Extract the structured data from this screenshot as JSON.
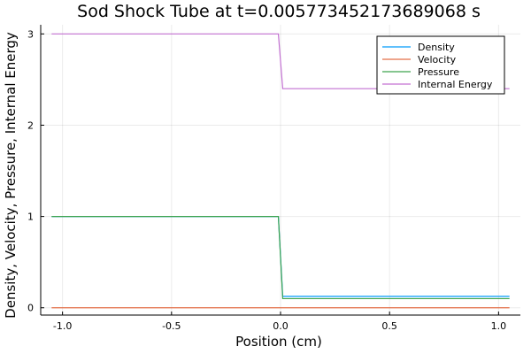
{
  "chart_data": {
    "type": "line",
    "title": "Sod Shock Tube at t=0.005773452173689068 s",
    "xlabel": "Position (cm)",
    "ylabel": "Density, Velocity, Pressure, Internal Energy",
    "xlim": [
      -1.1,
      1.1
    ],
    "ylim": [
      -0.08,
      3.1
    ],
    "xticks": [
      -1.0,
      -0.5,
      0.0,
      0.5,
      1.0
    ],
    "xtick_labels": [
      "-1.0",
      "-0.5",
      "0.0",
      "0.5",
      "1.0"
    ],
    "yticks": [
      0,
      1,
      2,
      3
    ],
    "ytick_labels": [
      "0",
      "1",
      "2",
      "3"
    ],
    "grid": true,
    "legend_position": "top-right",
    "series": [
      {
        "name": "Density",
        "color": "#009AFA",
        "x": [
          -1.05,
          -0.01,
          0.01,
          1.05
        ],
        "y": [
          1.0,
          1.0,
          0.125,
          0.125
        ]
      },
      {
        "name": "Velocity",
        "color": "#E36F47",
        "x": [
          -1.05,
          1.05
        ],
        "y": [
          0.0,
          0.0
        ]
      },
      {
        "name": "Pressure",
        "color": "#3EA44E",
        "x": [
          -1.05,
          -0.01,
          0.01,
          1.05
        ],
        "y": [
          1.0,
          1.0,
          0.1,
          0.1
        ]
      },
      {
        "name": "Internal Energy",
        "color": "#C371D2",
        "x": [
          -1.05,
          -0.01,
          0.01,
          1.05
        ],
        "y": [
          3.0,
          3.0,
          2.4,
          2.4
        ]
      }
    ]
  }
}
